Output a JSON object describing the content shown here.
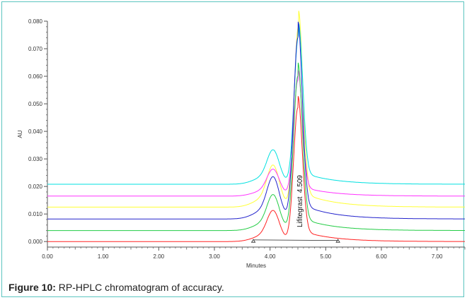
{
  "figure": {
    "caption_label": "Figure 10:",
    "caption_text": " RP-HPLC chromatogram of accuracy."
  },
  "chart_data": {
    "type": "line",
    "xlabel": "Minutes",
    "ylabel": "AU",
    "xlim": [
      0,
      7.5
    ],
    "ylim": [
      -0.002,
      0.08
    ],
    "x_ticks": [
      "0.00",
      "1.00",
      "2.00",
      "3.00",
      "4.00",
      "5.00",
      "6.00",
      "7.00"
    ],
    "y_ticks": [
      "0.000",
      "0.010",
      "0.020",
      "0.030",
      "0.040",
      "0.050",
      "0.060",
      "0.070",
      "0.080"
    ],
    "peak_annotation": {
      "name": "Lifitegrast",
      "retention_time": "4.509"
    },
    "baseline_marks": [
      3.7,
      5.22
    ],
    "grid": false,
    "series": [
      {
        "color": "#00e0e0",
        "baseline": 0.0208,
        "apex": 0.0745,
        "apex_x": 4.51
      },
      {
        "color": "#ff33ff",
        "baseline": 0.0165,
        "apex": 0.0585,
        "apex_x": 4.5
      },
      {
        "color": "#ffff33",
        "baseline": 0.0125,
        "apex": 0.078,
        "apex_x": 4.51
      },
      {
        "color": "#2222cc",
        "baseline": 0.0082,
        "apex": 0.074,
        "apex_x": 4.5
      },
      {
        "color": "#22cc44",
        "baseline": 0.004,
        "apex": 0.06,
        "apex_x": 4.5
      },
      {
        "color": "#ff2222",
        "baseline": 0.0,
        "apex": 0.0485,
        "apex_x": 4.5
      }
    ]
  }
}
